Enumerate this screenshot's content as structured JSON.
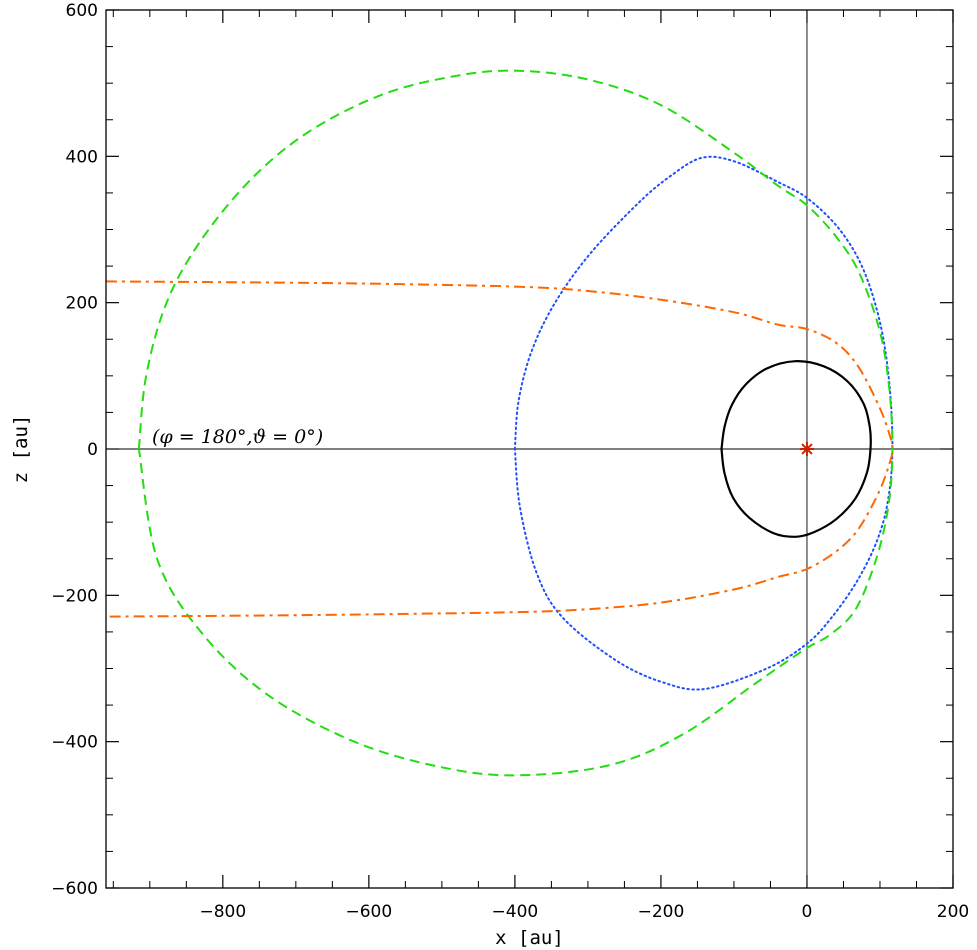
{
  "chart_data": {
    "type": "line",
    "title": "",
    "xlabel": "x [au]",
    "ylabel": "z [au]",
    "xlim": [
      -960,
      200
    ],
    "ylim": [
      -600,
      600
    ],
    "x_ticks": [
      -800,
      -600,
      -400,
      -200,
      0,
      200
    ],
    "y_ticks": [
      -600,
      -400,
      -200,
      0,
      200,
      400,
      600
    ],
    "x_tick_labels": [
      "−800",
      "−600",
      "−400",
      "−200",
      "0",
      "200"
    ],
    "y_tick_labels": [
      "−600",
      "−400",
      "−200",
      "0",
      "200",
      "400",
      "600"
    ],
    "grid": false,
    "reference_lines": [
      {
        "orientation": "horizontal",
        "value": 0
      },
      {
        "orientation": "vertical",
        "value": 0
      }
    ],
    "annotation": "(φ = 180°,ϑ = 0°)",
    "star_marker": {
      "x": 0,
      "y": 0,
      "symbol": "✳",
      "color": "#cc2200"
    },
    "series": [
      {
        "style": "solid",
        "color": "#000000",
        "points": [
          [
            -117,
            0
          ],
          [
            -113,
            30
          ],
          [
            -103,
            60
          ],
          [
            -84,
            88
          ],
          [
            -55,
            110
          ],
          [
            -16,
            120
          ],
          [
            23,
            113
          ],
          [
            55,
            93
          ],
          [
            77,
            63
          ],
          [
            86,
            30
          ],
          [
            87,
            0
          ],
          [
            82,
            -33
          ],
          [
            66,
            -68
          ],
          [
            40,
            -96
          ],
          [
            9,
            -114
          ],
          [
            -16,
            -120
          ],
          [
            -46,
            -115
          ],
          [
            -79,
            -94
          ],
          [
            -101,
            -67
          ],
          [
            -113,
            -33
          ],
          [
            -117,
            0
          ]
        ]
      },
      {
        "style": "dotted",
        "color": "#1f4fff",
        "points": [
          [
            -400,
            0
          ],
          [
            -395,
            65
          ],
          [
            -377,
            134
          ],
          [
            -345,
            200
          ],
          [
            -296,
            268
          ],
          [
            -230,
            337
          ],
          [
            -187,
            373
          ],
          [
            -144,
            398
          ],
          [
            -99,
            393
          ],
          [
            -40,
            365
          ],
          [
            0,
            343
          ],
          [
            43,
            302
          ],
          [
            76,
            248
          ],
          [
            100,
            173
          ],
          [
            113,
            88
          ],
          [
            117,
            0
          ],
          [
            111,
            -70
          ],
          [
            96,
            -125
          ],
          [
            69,
            -180
          ],
          [
            34,
            -230
          ],
          [
            0,
            -266
          ],
          [
            -55,
            -300
          ],
          [
            -140,
            -328
          ],
          [
            -200,
            -318
          ],
          [
            -263,
            -288
          ],
          [
            -335,
            -230
          ],
          [
            -370,
            -170
          ],
          [
            -393,
            -80
          ],
          [
            -400,
            0
          ]
        ]
      },
      {
        "style": "dashed",
        "color": "#22dd11",
        "points": [
          [
            -915,
            0
          ],
          [
            -905,
            100
          ],
          [
            -877,
            200
          ],
          [
            -830,
            285
          ],
          [
            -760,
            370
          ],
          [
            -680,
            435
          ],
          [
            -580,
            485
          ],
          [
            -480,
            510
          ],
          [
            -397,
            517
          ],
          [
            -300,
            505
          ],
          [
            -200,
            470
          ],
          [
            -100,
            405
          ],
          [
            -40,
            360
          ],
          [
            0,
            333
          ],
          [
            40,
            290
          ],
          [
            72,
            240
          ],
          [
            100,
            160
          ],
          [
            113,
            80
          ],
          [
            117,
            0
          ],
          [
            112,
            -75
          ],
          [
            95,
            -150
          ],
          [
            66,
            -220
          ],
          [
            30,
            -255
          ],
          [
            0,
            -272
          ],
          [
            -70,
            -320
          ],
          [
            -170,
            -390
          ],
          [
            -270,
            -432
          ],
          [
            -397,
            -446
          ],
          [
            -500,
            -435
          ],
          [
            -620,
            -400
          ],
          [
            -740,
            -335
          ],
          [
            -830,
            -250
          ],
          [
            -890,
            -150
          ],
          [
            -915,
            0
          ]
        ]
      },
      {
        "style": "dashdot",
        "color": "#ff6600",
        "points": [
          [
            -960,
            229
          ],
          [
            -800,
            228
          ],
          [
            -600,
            226
          ],
          [
            -400,
            222
          ],
          [
            -300,
            216
          ],
          [
            -200,
            204
          ],
          [
            -100,
            187
          ],
          [
            -40,
            170
          ],
          [
            0,
            164
          ],
          [
            40,
            145
          ],
          [
            70,
            113
          ],
          [
            98,
            60
          ],
          [
            113,
            20
          ],
          [
            117,
            0
          ],
          [
            113,
            -20
          ],
          [
            98,
            -60
          ],
          [
            70,
            -110
          ],
          [
            40,
            -140
          ],
          [
            0,
            -164
          ],
          [
            -40,
            -175
          ],
          [
            -100,
            -192
          ],
          [
            -200,
            -210
          ],
          [
            -300,
            -219
          ],
          [
            -400,
            -223
          ],
          [
            -600,
            -226
          ],
          [
            -800,
            -228
          ],
          [
            -960,
            -229
          ]
        ]
      }
    ]
  }
}
